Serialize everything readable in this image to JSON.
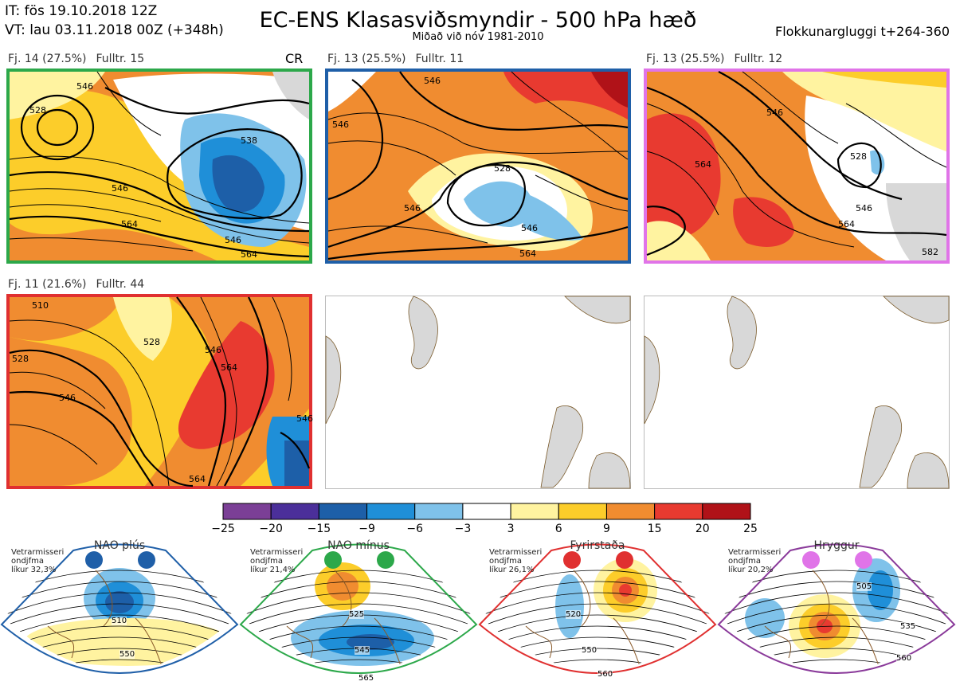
{
  "header": {
    "it": "IT: fös 19.10.2018 12Z",
    "vt": "VT: lau 03.11.2018 00Z  (+348h)",
    "title": "EC-ENS Klasasviðsmyndir - 500 hPa hæð",
    "subtitle": "Miðað við nóv 1981-2010",
    "window": "Flokkunargluggi t+264-360"
  },
  "panels": [
    {
      "label": "Fj. 14 (27.5%)",
      "rep": "Fulltr. 15",
      "tag": "CR",
      "frame": "#2ca84a",
      "contours": [
        "546",
        "528",
        "546",
        "564",
        "538",
        "546",
        "564"
      ]
    },
    {
      "label": "Fj. 13 (25.5%)",
      "rep": "Fulltr. 11",
      "tag": "",
      "frame": "#1f5fa8",
      "contours": [
        "546",
        "546",
        "528",
        "546",
        "546",
        "564"
      ]
    },
    {
      "label": "Fj. 13 (25.5%)",
      "rep": "Fulltr. 12",
      "tag": "",
      "frame": "#e074e8",
      "contours": [
        "546",
        "564",
        "528",
        "546",
        "564",
        "582"
      ]
    },
    {
      "label": "Fj. 11 (21.6%)",
      "rep": "Fulltr. 44",
      "tag": "",
      "frame": "#e03030",
      "contours": [
        "510",
        "528",
        "546",
        "528",
        "546",
        "564",
        "546",
        "564"
      ]
    }
  ],
  "colorbar": {
    "ticks": [
      "−25",
      "−20",
      "−15",
      "−9",
      "−6",
      "−3",
      "3",
      "6",
      "9",
      "15",
      "20",
      "25"
    ],
    "colors": [
      "#7b3f96",
      "#4b2f9a",
      "#1d5fa8",
      "#1f8fd8",
      "#7fc2ea",
      "#ffffff",
      "#fff3a0",
      "#fccd2a",
      "#f08c30",
      "#e83a30",
      "#b01218"
    ]
  },
  "regimes": [
    {
      "name": "NAO plús",
      "note": [
        "Vetrarmisseri",
        "ondjfma",
        "líkur 32,3%"
      ],
      "frame": "#1f5fa8",
      "dot": "#1f5fa8",
      "contours": [
        "510",
        "550"
      ]
    },
    {
      "name": "NAO mínus",
      "note": [
        "Vetrarmisseri",
        "ondjfma",
        "líkur 21,4%"
      ],
      "frame": "#2ca84a",
      "dot": "#2ca84a",
      "contours": [
        "525",
        "545",
        "565"
      ]
    },
    {
      "name": "Fyrirstaða",
      "note": [
        "Vetrarmisseri",
        "ondjfma",
        "líkur 26,1%"
      ],
      "frame": "#e03030",
      "dot": "#e03030",
      "contours": [
        "520",
        "550",
        "560"
      ]
    },
    {
      "name": "Hryggur",
      "note": [
        "Vetrarmisseri",
        "ondjfma",
        "líkur 20,2%"
      ],
      "frame": "#8a3a9a",
      "dot": "#e074e8",
      "contours": [
        "505",
        "535",
        "560"
      ]
    }
  ]
}
